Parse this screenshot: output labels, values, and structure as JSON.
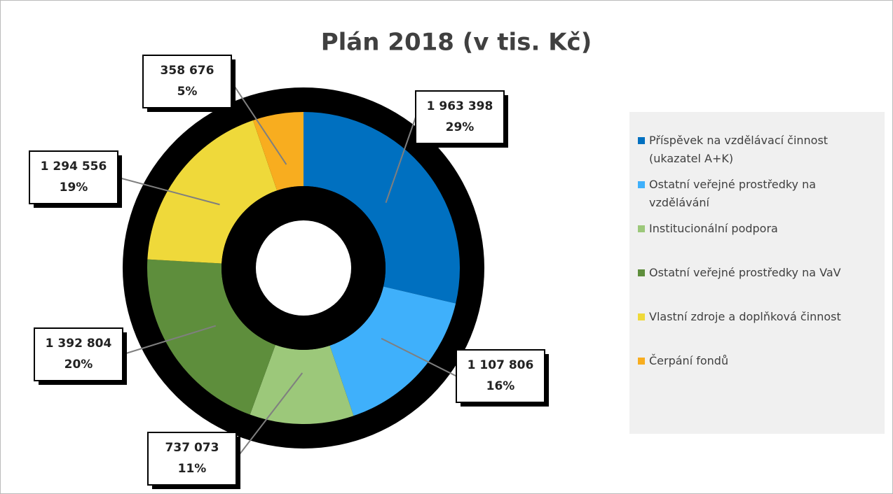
{
  "chart_data": {
    "type": "donut",
    "title": "Plán 2018 (v tis. Kč)",
    "categories": [
      "Příspěvek na vzdělávací činnost (ukazatel A+K)",
      "Ostatní veřejné prostředky na vzdělávání",
      "Institucionální podpora",
      "Ostatní veřejné prostředky na VaV",
      "Vlastní zdroje a doplňková činnost",
      "Čerpání fondů"
    ],
    "values": [
      1963398,
      1107806,
      737073,
      1392804,
      1294556,
      358676
    ],
    "value_labels": [
      "1 963 398",
      "1 107 806",
      "737 073",
      "1 392 804",
      "1 294 556",
      "358 676"
    ],
    "percent_labels": [
      "29%",
      "16%",
      "11%",
      "20%",
      "19%",
      "5%"
    ],
    "colors": [
      "#0070c0",
      "#3fb0fb",
      "#9cc87a",
      "#5e8e3c",
      "#efd93a",
      "#f8ad1f"
    ],
    "legend": "right"
  }
}
